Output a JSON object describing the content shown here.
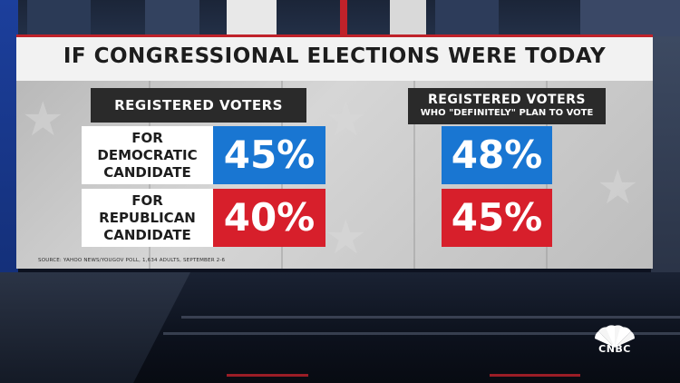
{
  "header": {
    "title": "IF CONGRESSIONAL ELECTIONS WERE TODAY"
  },
  "left_panel": {
    "heading": "REGISTERED VOTERS",
    "democratic": {
      "label_line1": "FOR",
      "label_line2": "DEMOCRATIC",
      "label_line3": "CANDIDATE",
      "value": "45%",
      "color": "#1976d2"
    },
    "republican": {
      "label_line1": "FOR",
      "label_line2": "REPUBLICAN",
      "label_line3": "CANDIDATE",
      "value": "40%",
      "color": "#d71f2b"
    }
  },
  "right_panel": {
    "heading_line1": "REGISTERED VOTERS",
    "heading_line2": "WHO \"DEFINITELY\" PLAN TO VOTE",
    "democratic": {
      "value": "48%",
      "color": "#1976d2"
    },
    "republican": {
      "value": "45%",
      "color": "#d71f2b"
    }
  },
  "source": "SOURCE: YAHOO NEWS/YOUGOV POLL, 1,634 ADULTS, SEPTEMBER 2-6",
  "logo": {
    "text": "CNBC",
    "icon": "peacock-icon"
  }
}
